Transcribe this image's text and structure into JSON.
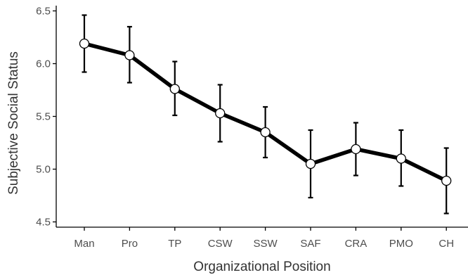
{
  "chart_data": {
    "type": "line",
    "xlabel": "Organizational Position",
    "ylabel": "Subjective Social Status",
    "categories": [
      "Man",
      "Pro",
      "TP",
      "CSW",
      "SSW",
      "SAF",
      "CRA",
      "PMO",
      "CH"
    ],
    "series": [
      {
        "values": [
          6.19,
          6.08,
          5.76,
          5.53,
          5.35,
          5.05,
          5.19,
          5.1,
          4.89
        ],
        "error_low": [
          5.92,
          5.82,
          5.51,
          5.26,
          5.11,
          4.73,
          4.94,
          4.84,
          4.58
        ],
        "error_high": [
          6.46,
          6.35,
          6.02,
          5.8,
          5.59,
          5.37,
          5.44,
          5.37,
          5.2
        ]
      }
    ],
    "ylim": [
      4.45,
      6.55
    ],
    "yticks": [
      "4.5",
      "5.0",
      "5.5",
      "6.0",
      "6.5"
    ],
    "grid": false,
    "colors": {
      "line": "#000000",
      "marker_fill": "#ffffff",
      "axis": "#000000"
    }
  }
}
